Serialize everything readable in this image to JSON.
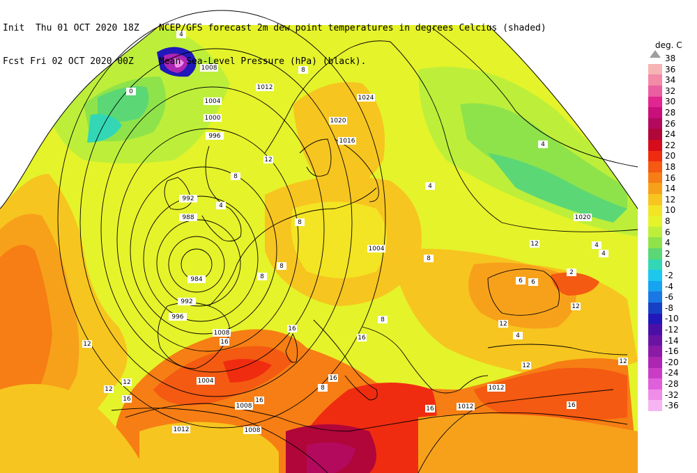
{
  "header": {
    "init_line": "Init  Thu 01 OCT 2020 18Z",
    "fcst_line": "Fcst Fri 02 OCT 2020 00Z",
    "title_line1": "NCEP/GFS forecast 2m dew point temperatures in degrees Celcius (shaded)",
    "title_line2": "Mean Sea-Level Pressure (hPa) (black)."
  },
  "legend": {
    "unit": "deg. C",
    "levels": [
      {
        "label": "38",
        "color": "#bdbdbd"
      },
      {
        "label": "36",
        "color": "#f7b4b4"
      },
      {
        "label": "34",
        "color": "#f28aa8"
      },
      {
        "label": "32",
        "color": "#ea5fa0"
      },
      {
        "label": "30",
        "color": "#e2268f"
      },
      {
        "label": "28",
        "color": "#c80f7b"
      },
      {
        "label": "26",
        "color": "#b30a5e"
      },
      {
        "label": "24",
        "color": "#b0063a"
      },
      {
        "label": "22",
        "color": "#d50c1c"
      },
      {
        "label": "20",
        "color": "#f02c10"
      },
      {
        "label": "18",
        "color": "#f45a11"
      },
      {
        "label": "16",
        "color": "#f67e14"
      },
      {
        "label": "14",
        "color": "#f7a11b"
      },
      {
        "label": "12",
        "color": "#f7c51f"
      },
      {
        "label": "10",
        "color": "#f3e424"
      },
      {
        "label": "8",
        "color": "#e5f32a"
      },
      {
        "label": "6",
        "color": "#bdef3a"
      },
      {
        "label": "4",
        "color": "#8fe34a"
      },
      {
        "label": "2",
        "color": "#5bd776"
      },
      {
        "label": "0",
        "color": "#33d7b5"
      },
      {
        "label": "-2",
        "color": "#1cc8ee"
      },
      {
        "label": "-4",
        "color": "#16a3f0"
      },
      {
        "label": "-6",
        "color": "#1a78e4"
      },
      {
        "label": "-8",
        "color": "#1741c4"
      },
      {
        "label": "-10",
        "color": "#2018b8"
      },
      {
        "label": "-12",
        "color": "#4b0fa8"
      },
      {
        "label": "-14",
        "color": "#6a13a2"
      },
      {
        "label": "-16",
        "color": "#8b1aa6"
      },
      {
        "label": "-20",
        "color": "#ac25b3"
      },
      {
        "label": "-24",
        "color": "#c93dc6"
      },
      {
        "label": "-28",
        "color": "#e060db"
      },
      {
        "label": "-32",
        "color": "#ef8de9"
      },
      {
        "label": "-36",
        "color": "#f6b5f2"
      }
    ]
  },
  "isobar_labels": [
    "1008",
    "1012",
    "1004",
    "1000",
    "996",
    "992",
    "988",
    "984",
    "992",
    "996",
    "1008",
    "1004",
    "1008",
    "1012",
    "1008",
    "1024",
    "1020",
    "1016",
    "1004",
    "1020",
    "1012",
    "1012"
  ],
  "shading_labels": [
    "4",
    "0",
    "8",
    "8",
    "4",
    "8",
    "12",
    "8",
    "8",
    "4",
    "8",
    "12",
    "16",
    "16",
    "16",
    "16",
    "16",
    "16",
    "12",
    "12",
    "12",
    "12",
    "12",
    "8",
    "4",
    "4",
    "6",
    "2",
    "6",
    "8",
    "4",
    "4",
    "12",
    "12",
    "16",
    "16"
  ],
  "colors": {
    "sea_orange": "#f67e14",
    "med_red": "#f02c10",
    "africa_dark": "#c80f7b",
    "land_yellow": "#f3e424",
    "greenish": "#bdef3a",
    "cyan": "#33d7b5"
  }
}
